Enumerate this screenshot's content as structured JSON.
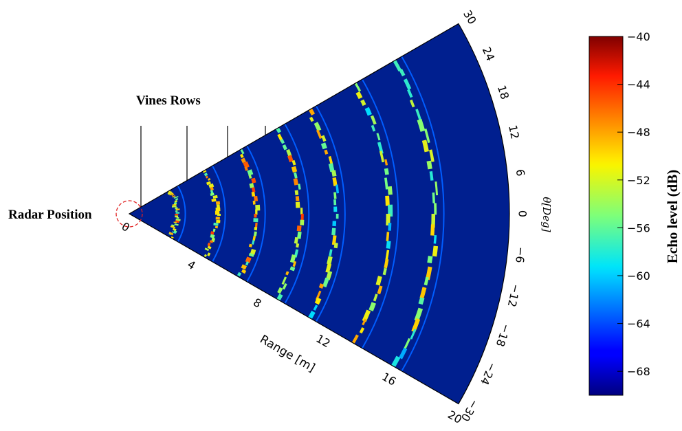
{
  "chart_data": {
    "type": "heatmap",
    "subtype": "polar-sector",
    "annotations": {
      "vines_rows": "Vines Rows",
      "radar_position": "Radar Position"
    },
    "range_axis": {
      "label": "Range [m]",
      "ticks": [
        "0",
        "4",
        "8",
        "12",
        "16",
        "20"
      ],
      "min": 0,
      "max": 20
    },
    "angle_axis": {
      "label": "θ[Deg]",
      "ticks": [
        "30",
        "24",
        "18",
        "12",
        "6",
        "0",
        "−6",
        "−12",
        "−18",
        "−24",
        "−30"
      ],
      "min": -30,
      "max": 30
    },
    "colorbar": {
      "label": "Echo level (dB)",
      "ticks": [
        "−40",
        "−44",
        "−48",
        "−52",
        "−56",
        "−60",
        "−64",
        "−68"
      ],
      "min": -70,
      "max": -40,
      "colormap": "jet"
    },
    "background_color": "#001f8f",
    "vine_row_ranges_m": [
      2.5,
      4.6,
      6.7,
      9.0,
      10.9,
      13.7,
      16.1
    ]
  }
}
